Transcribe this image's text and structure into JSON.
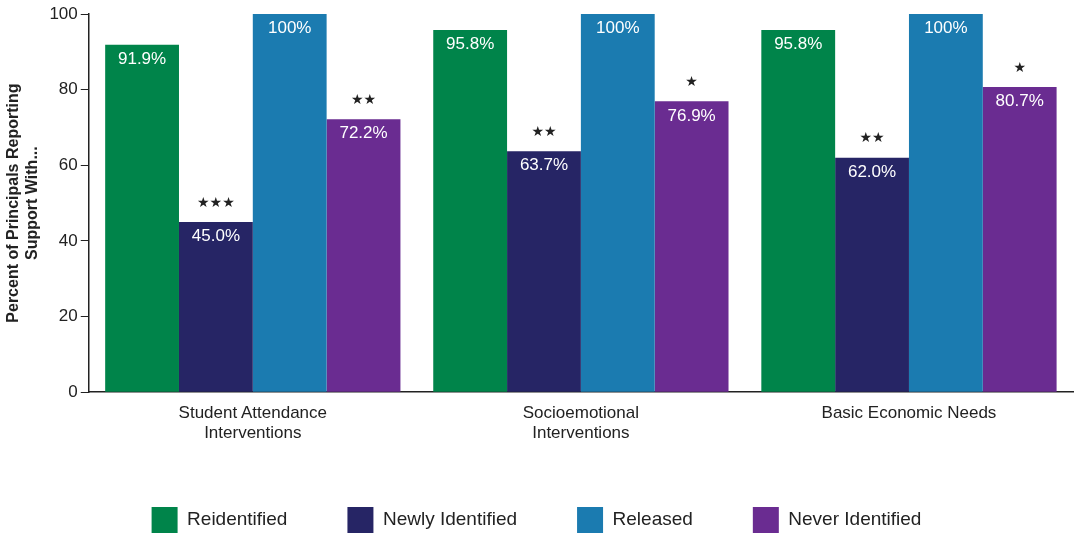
{
  "chart_data": {
    "type": "bar",
    "ylabel": "Percent of Principals Reporting Support With...",
    "categories": [
      "Student Attendance Interventions",
      "Socioemotional Interventions",
      "Basic Economic Needs"
    ],
    "series": [
      {
        "name": "Reidentified",
        "color": "#00844a",
        "values": [
          91.9,
          95.8,
          95.8
        ],
        "value_labels": [
          "91.9%",
          "95.8%",
          "95.8%"
        ]
      },
      {
        "name": "Newly Identified",
        "color": "#262565",
        "values": [
          45.0,
          63.7,
          62.0
        ],
        "value_labels": [
          "45.0%",
          "63.7%",
          "62.0%"
        ]
      },
      {
        "name": "Released",
        "color": "#1b7bb0",
        "values": [
          100,
          100,
          100
        ],
        "value_labels": [
          "100%",
          "100%",
          "100%"
        ]
      },
      {
        "name": "Never Identified",
        "color": "#6a2c91",
        "values": [
          72.2,
          76.9,
          80.7
        ],
        "value_labels": [
          "72.2%",
          "76.9%",
          "80.7%"
        ]
      }
    ],
    "ylim": [
      0,
      100
    ],
    "yticks": [
      0,
      20,
      40,
      60,
      80,
      100
    ],
    "grid": false,
    "legend": "bottom",
    "annotations": [
      "★★★",
      "★★",
      "★★",
      "★",
      "★★",
      "★"
    ]
  }
}
